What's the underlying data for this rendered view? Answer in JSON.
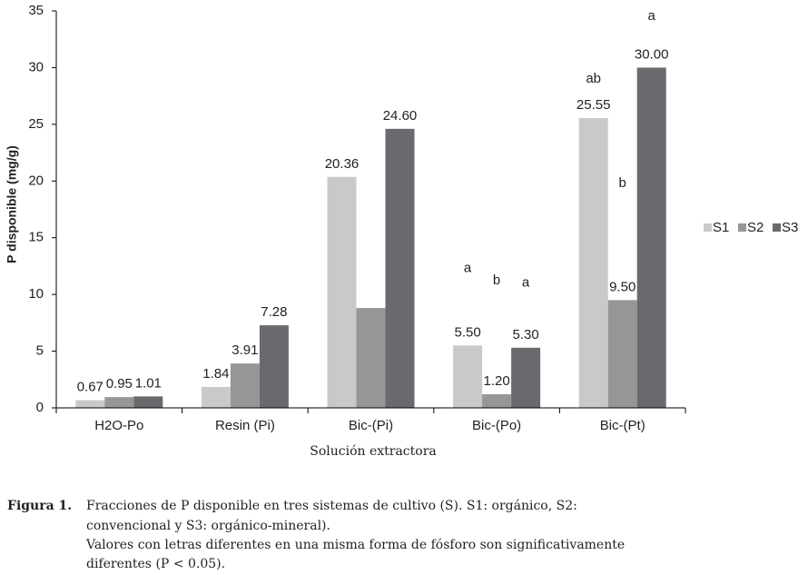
{
  "chart_data": {
    "type": "bar",
    "y_label": "P disponible (mg/g)",
    "x_label": "Solución extractora",
    "categories": [
      "H2O-Po",
      "Resin (Pi)",
      "Bic-(Pi)",
      "Bic-(Po)",
      "Bic-(Pt)"
    ],
    "series": [
      {
        "name": "S1",
        "color": "#c9c9c9",
        "values": [
          0.67,
          1.84,
          20.36,
          5.5,
          25.55
        ],
        "value_labels": [
          "0.67",
          "1.84",
          "20.36",
          "5.50",
          "25.55"
        ]
      },
      {
        "name": "S2",
        "color": "#969696",
        "values": [
          0.95,
          3.91,
          8.8,
          1.2,
          9.5
        ],
        "value_labels": [
          "0.95",
          "3.91",
          null,
          "1.20",
          "9.50"
        ]
      },
      {
        "name": "S3",
        "color": "#6a6a6e",
        "values": [
          1.01,
          7.28,
          24.6,
          5.3,
          30.0
        ],
        "value_labels": [
          "1.01",
          "7.28",
          "24.60",
          "5.30",
          "30.00"
        ]
      }
    ],
    "ylim": [
      0,
      35
    ],
    "yticks": [
      0,
      5,
      10,
      15,
      20,
      25,
      30,
      35
    ],
    "legend": "right",
    "annotations": [
      {
        "text": "a",
        "category": 3,
        "series": 0,
        "y": 12.3
      },
      {
        "text": "b",
        "category": 3,
        "series": 1,
        "y": 11.2
      },
      {
        "text": "a",
        "category": 3,
        "series": 2,
        "y": 11.0
      },
      {
        "text": "ab",
        "category": 4,
        "series": 0,
        "y": 29.0
      },
      {
        "text": "b",
        "category": 4,
        "series": 1,
        "y": 19.8
      },
      {
        "text": "a",
        "category": 4,
        "series": 2,
        "y": 34.5
      }
    ]
  },
  "caption": {
    "label": "Figura 1.",
    "lines": [
      "Fracciones de P disponible en tres sistemas de cultivo (S). S1: orgánico, S2:",
      "convencional y S3: orgánico-mineral).",
      "Valores con letras diferentes en una misma forma de fósforo son significativamente",
      "diferentes (P < 0.05)."
    ]
  }
}
